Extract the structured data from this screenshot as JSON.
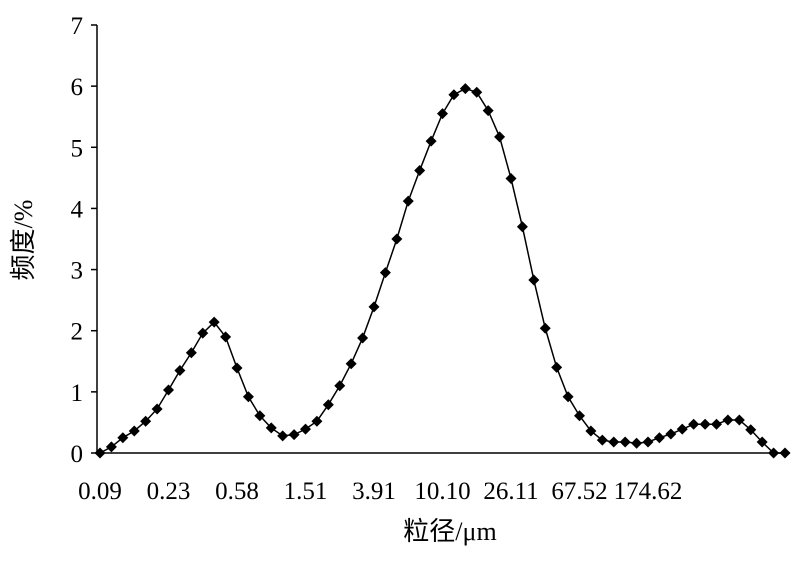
{
  "chart_data": {
    "type": "line",
    "xlabel": "粒径/μm",
    "ylabel": "频度/%",
    "categories": [
      "0.09",
      null,
      null,
      null,
      null,
      null,
      "0.23",
      null,
      null,
      null,
      null,
      null,
      "0.58",
      null,
      null,
      null,
      null,
      null,
      "1.51",
      null,
      null,
      null,
      null,
      null,
      "3.91",
      null,
      null,
      null,
      null,
      null,
      "10.10",
      null,
      null,
      null,
      null,
      null,
      "26.11",
      null,
      null,
      null,
      null,
      null,
      "67.52",
      null,
      null,
      null,
      null,
      null,
      "174.62",
      null,
      null,
      null,
      null,
      null,
      null,
      null,
      null,
      null,
      null,
      null,
      null
    ],
    "series": [
      {
        "color": "#000000",
        "marker": "diamond",
        "values": [
          0,
          0.1,
          0.25,
          0.36,
          0.52,
          0.72,
          1.03,
          1.35,
          1.64,
          1.96,
          2.14,
          1.9,
          1.39,
          0.92,
          0.61,
          0.41,
          0.28,
          0.3,
          0.39,
          0.52,
          0.79,
          1.1,
          1.46,
          1.88,
          2.39,
          2.95,
          3.5,
          4.12,
          4.62,
          5.1,
          5.55,
          5.86,
          5.96,
          5.9,
          5.6,
          5.17,
          4.49,
          3.7,
          2.83,
          2.04,
          1.4,
          0.92,
          0.61,
          0.36,
          0.21,
          0.18,
          0.18,
          0.16,
          0.18,
          0.25,
          0.31,
          0.39,
          0.47,
          0.47,
          0.47,
          0.54,
          0.54,
          0.38,
          0.18,
          0,
          0
        ]
      }
    ],
    "ylim": [
      0,
      7
    ],
    "yticks": [
      0,
      1,
      2,
      3,
      4,
      5,
      6,
      7
    ],
    "grid": false
  }
}
